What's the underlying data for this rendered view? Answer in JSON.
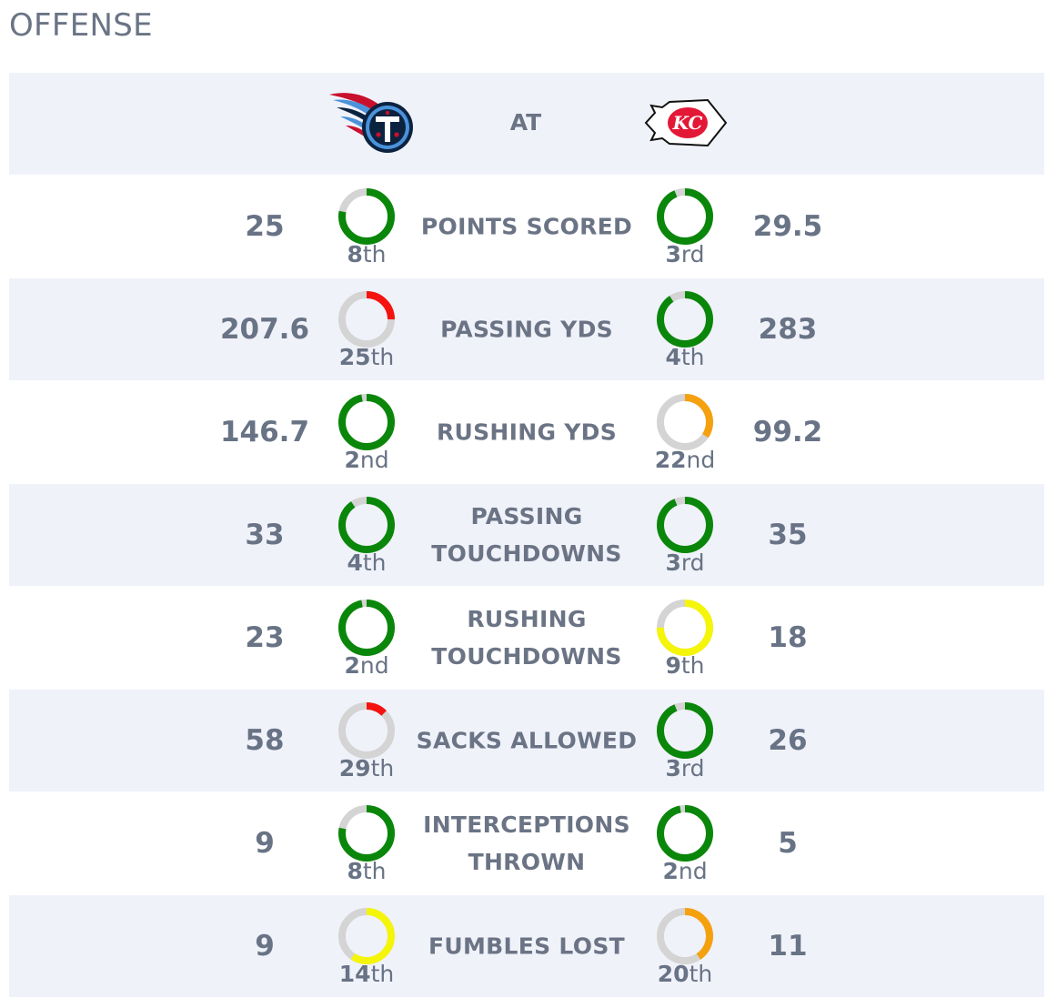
{
  "section": {
    "title": "OFFENSE"
  },
  "matchup": {
    "at_label": "AT",
    "away_team": {
      "logo_icon": "titans-logo-icon",
      "abbr": "T"
    },
    "home_team": {
      "logo_icon": "chiefs-logo-icon",
      "abbr": "KC"
    }
  },
  "colors": {
    "good": "#0a870a",
    "mid": "#f5f50a",
    "warn": "#f5a10f",
    "bad": "#f5130f",
    "track": "#d4d4d4",
    "row_shade": "#f0f2fa",
    "text": "#687385"
  },
  "stats": [
    {
      "label": "POINTS SCORED",
      "away": {
        "value": "25",
        "rank_num": "8",
        "rank_suffix": "th",
        "rank": 8,
        "color": "#0a870a"
      },
      "home": {
        "value": "29.5",
        "rank_num": "3",
        "rank_suffix": "rd",
        "rank": 3,
        "color": "#0a870a"
      }
    },
    {
      "label": "PASSING YDS",
      "away": {
        "value": "207.6",
        "rank_num": "25",
        "rank_suffix": "th",
        "rank": 25,
        "color": "#f5130f"
      },
      "home": {
        "value": "283",
        "rank_num": "4",
        "rank_suffix": "th",
        "rank": 4,
        "color": "#0a870a"
      }
    },
    {
      "label": "RUSHING YDS",
      "away": {
        "value": "146.7",
        "rank_num": "2",
        "rank_suffix": "nd",
        "rank": 2,
        "color": "#0a870a"
      },
      "home": {
        "value": "99.2",
        "rank_num": "22",
        "rank_suffix": "nd",
        "rank": 22,
        "color": "#f5a10f"
      }
    },
    {
      "label": "PASSING TOUCHDOWNS",
      "away": {
        "value": "33",
        "rank_num": "4",
        "rank_suffix": "th",
        "rank": 4,
        "color": "#0a870a"
      },
      "home": {
        "value": "35",
        "rank_num": "3",
        "rank_suffix": "rd",
        "rank": 3,
        "color": "#0a870a"
      }
    },
    {
      "label": "RUSHING TOUCHDOWNS",
      "away": {
        "value": "23",
        "rank_num": "2",
        "rank_suffix": "nd",
        "rank": 2,
        "color": "#0a870a"
      },
      "home": {
        "value": "18",
        "rank_num": "9",
        "rank_suffix": "th",
        "rank": 9,
        "color": "#f5f50a"
      }
    },
    {
      "label": "SACKS ALLOWED",
      "away": {
        "value": "58",
        "rank_num": "29",
        "rank_suffix": "th",
        "rank": 29,
        "color": "#f5130f"
      },
      "home": {
        "value": "26",
        "rank_num": "3",
        "rank_suffix": "rd",
        "rank": 3,
        "color": "#0a870a"
      }
    },
    {
      "label": "INTERCEPTIONS THROWN",
      "away": {
        "value": "9",
        "rank_num": "8",
        "rank_suffix": "th",
        "rank": 8,
        "color": "#0a870a"
      },
      "home": {
        "value": "5",
        "rank_num": "2",
        "rank_suffix": "nd",
        "rank": 2,
        "color": "#0a870a"
      }
    },
    {
      "label": "FUMBLES LOST",
      "away": {
        "value": "9",
        "rank_num": "14",
        "rank_suffix": "th",
        "rank": 14,
        "color": "#f5f50a"
      },
      "home": {
        "value": "11",
        "rank_num": "20",
        "rank_suffix": "th",
        "rank": 20,
        "color": "#f5a10f"
      }
    }
  ]
}
